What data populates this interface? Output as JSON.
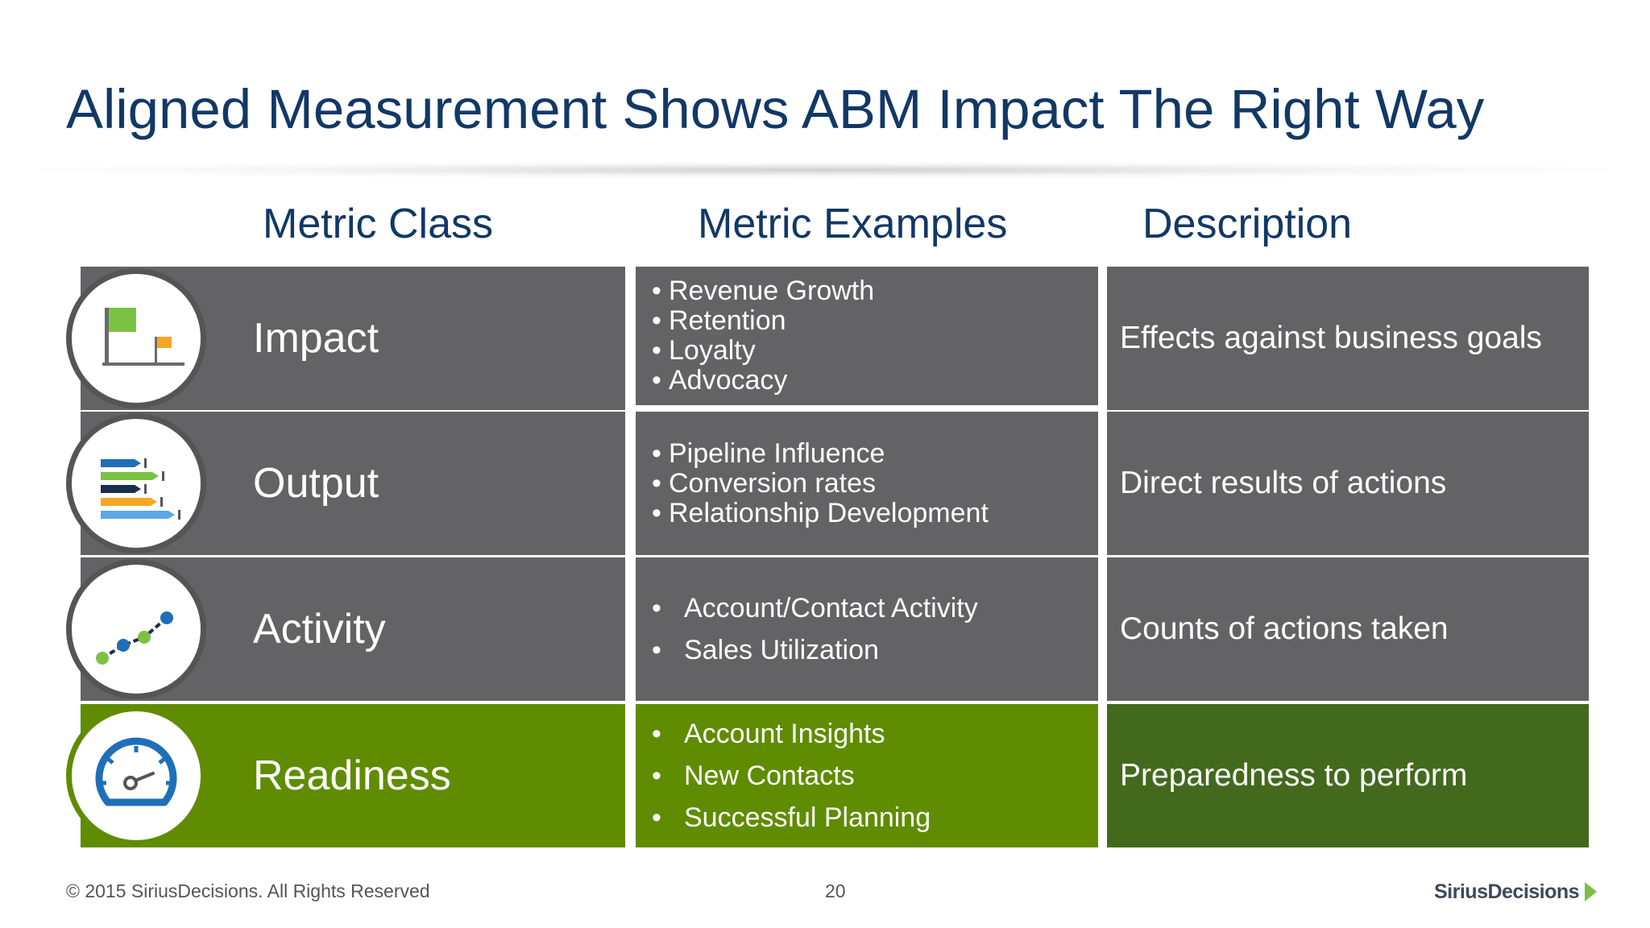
{
  "slide": {
    "title": "Aligned Measurement Shows ABM Impact The Right Way"
  },
  "columns": {
    "metric_class": "Metric Class",
    "metric_examples": "Metric Examples",
    "description": "Description"
  },
  "rows": [
    {
      "class_label": "Impact",
      "icon": "flags-icon",
      "examples": [
        "Revenue Growth",
        "Retention",
        "Loyalty",
        "Advocacy"
      ],
      "description": "Effects against business goals"
    },
    {
      "class_label": "Output",
      "icon": "bar-arrows-icon",
      "examples": [
        "Pipeline Influence",
        "Conversion rates",
        "Relationship Development"
      ],
      "description": "Direct results of actions"
    },
    {
      "class_label": "Activity",
      "icon": "trend-line-icon",
      "examples": [
        "Account/Contact Activity",
        "Sales Utilization"
      ],
      "description": "Counts of actions taken"
    },
    {
      "class_label": "Readiness",
      "icon": "speedometer-icon",
      "examples": [
        "Account Insights",
        "New Contacts",
        "Successful Planning"
      ],
      "description": "Preparedness to perform"
    }
  ],
  "colors": {
    "title_blue": "#123866",
    "row_grey": "#636366",
    "readiness_green": "#5f8c00",
    "readiness_dark_green": "#43691d"
  },
  "footer": {
    "copyright": "© 2015 SiriusDecisions. All Rights Reserved",
    "page_number": "20",
    "logo_text": "SiriusDecisions"
  }
}
